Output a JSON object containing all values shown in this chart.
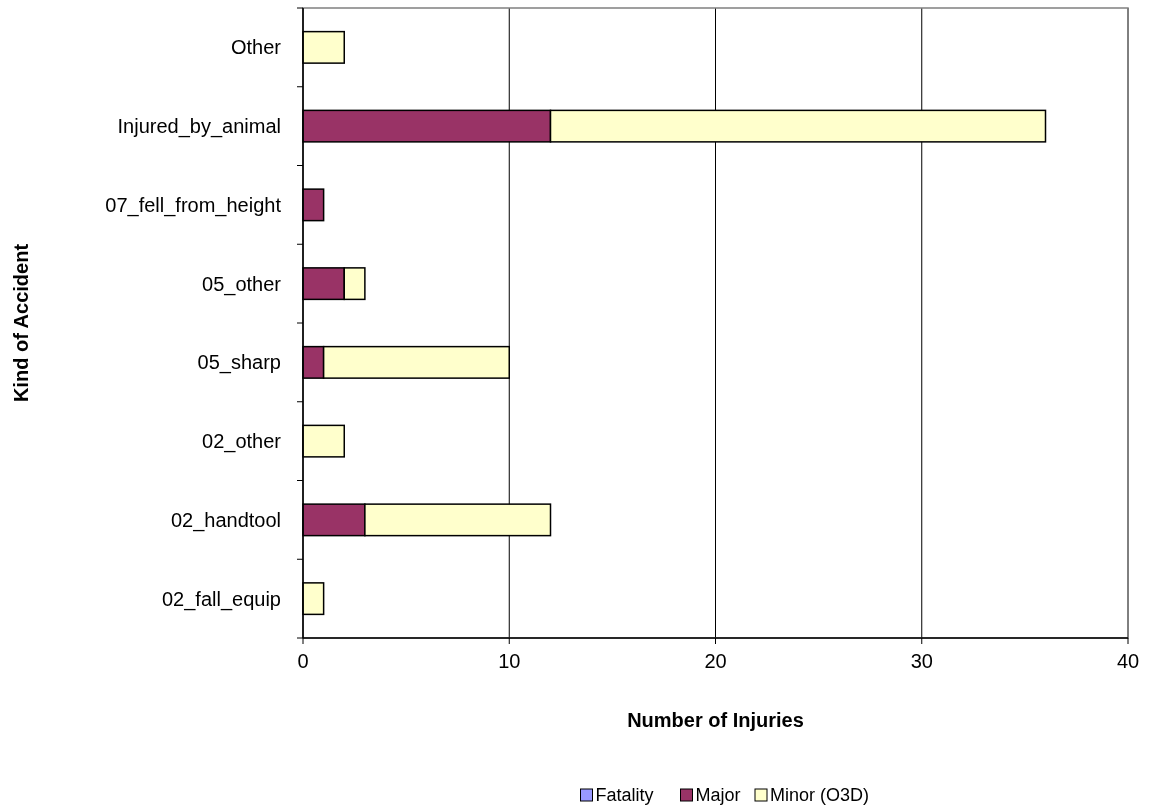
{
  "chart_data": {
    "type": "bar",
    "orientation": "horizontal",
    "stacked": true,
    "xlabel": "Number of Injuries",
    "ylabel": "Kind of Accident",
    "categories": [
      "Other",
      "Injured_by_animal",
      "07_fell_from_height",
      "05_other",
      "05_sharp",
      "02_other",
      "02_handtool",
      "02_fall_equip"
    ],
    "series": [
      {
        "name": "Fatality",
        "color": "#9999ff",
        "values": [
          0,
          0,
          0,
          0,
          0,
          0,
          0,
          0
        ]
      },
      {
        "name": "Major",
        "color": "#993366",
        "values": [
          0,
          12,
          1,
          2,
          1,
          0,
          3,
          0
        ]
      },
      {
        "name": "Minor (O3D)",
        "color": "#ffffcc",
        "values": [
          2,
          24,
          0,
          1,
          9,
          2,
          9,
          1
        ]
      }
    ],
    "xlim": [
      0,
      40
    ],
    "xticks": [
      0,
      10,
      20,
      30,
      40
    ],
    "grid": "x",
    "legend": "bottom"
  }
}
